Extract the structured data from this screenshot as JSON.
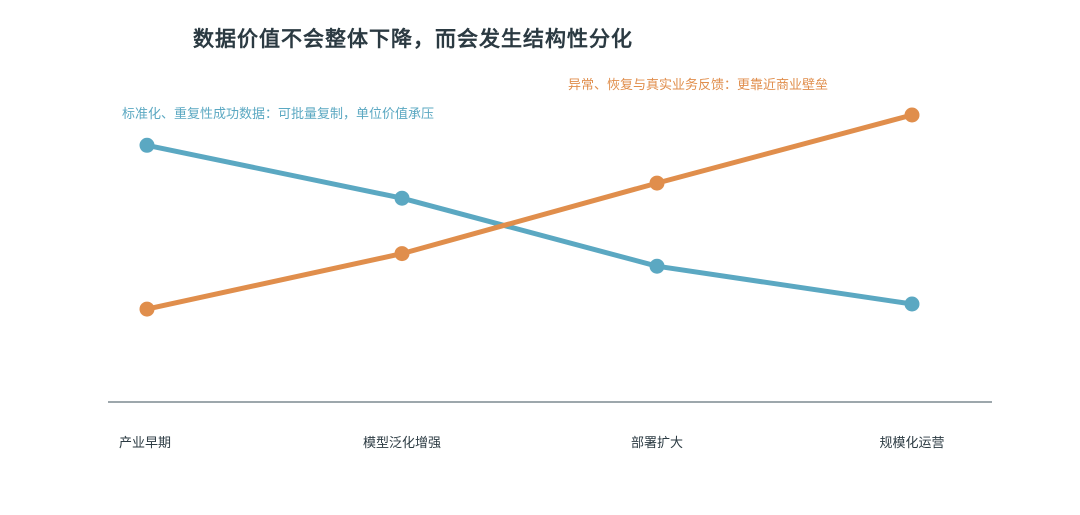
{
  "chart_data": {
    "type": "line",
    "title": "数据价值不会整体下降，而会发生结构性分化",
    "categories": [
      "产业早期",
      "模型泛化增强",
      "部署扩大",
      "规模化运营"
    ],
    "xlabel": "",
    "ylabel": "",
    "ylim": [
      0,
      100
    ],
    "grid": false,
    "legend": "inline-labels",
    "series": [
      {
        "name": "标准化、重复性成功数据：可批量复制，单位价值承压",
        "color": "#5ba8c2",
        "values": [
          86,
          65,
          38,
          23
        ]
      },
      {
        "name": "异常、恢复与真实业务反馈：更靠近商业壁垒",
        "color": "#e08e4c",
        "values": [
          21,
          43,
          71,
          98
        ]
      }
    ]
  }
}
